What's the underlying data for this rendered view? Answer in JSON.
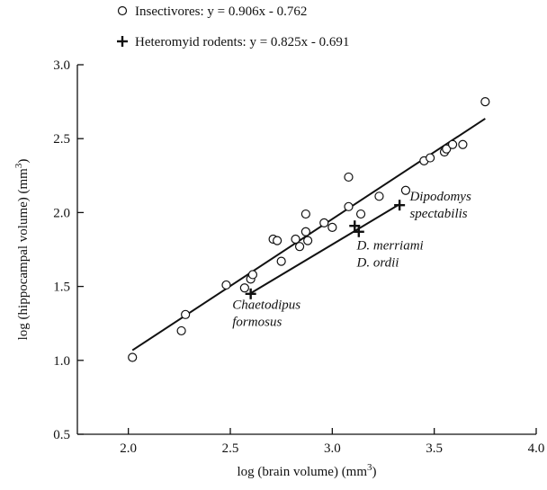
{
  "chart_data": {
    "type": "scatter",
    "title": "",
    "xlabel": "log (brain volume) (mm",
    "xlabel_sup": "3",
    "xlabel_close": ")",
    "ylabel": "log (hippocampal volume) (mm",
    "ylabel_sup": "3",
    "ylabel_close": ")",
    "xlim": [
      1.75,
      4.0
    ],
    "ylim": [
      0.5,
      3.0
    ],
    "xticks": [
      2.0,
      2.5,
      3.0,
      3.5,
      4.0
    ],
    "xtick_labels": [
      "2.0",
      "2.5",
      "3.0",
      "3.5",
      "4.0"
    ],
    "yticks": [
      0.5,
      1.0,
      1.5,
      2.0,
      2.5,
      3.0
    ],
    "ytick_labels": [
      "0.5",
      "1.0",
      "1.5",
      "2.0",
      "2.5",
      "3.0"
    ],
    "grid": false,
    "legend_position": "top",
    "series": [
      {
        "name": "Insectivores: y = 0.906x - 0.762",
        "marker": "circle",
        "points": [
          [
            2.02,
            1.02
          ],
          [
            2.26,
            1.2
          ],
          [
            2.28,
            1.31
          ],
          [
            2.48,
            1.51
          ],
          [
            2.57,
            1.49
          ],
          [
            2.6,
            1.55
          ],
          [
            2.61,
            1.58
          ],
          [
            2.71,
            1.82
          ],
          [
            2.73,
            1.81
          ],
          [
            2.75,
            1.67
          ],
          [
            2.82,
            1.82
          ],
          [
            2.84,
            1.77
          ],
          [
            2.87,
            1.99
          ],
          [
            2.87,
            1.87
          ],
          [
            2.88,
            1.81
          ],
          [
            2.96,
            1.93
          ],
          [
            3.0,
            1.9
          ],
          [
            3.08,
            2.04
          ],
          [
            3.08,
            2.24
          ],
          [
            3.14,
            1.99
          ],
          [
            3.23,
            2.11
          ],
          [
            3.36,
            2.15
          ],
          [
            3.45,
            2.35
          ],
          [
            3.48,
            2.37
          ],
          [
            3.55,
            2.41
          ],
          [
            3.56,
            2.43
          ],
          [
            3.59,
            2.46
          ],
          [
            3.64,
            2.46
          ],
          [
            3.75,
            2.75
          ]
        ],
        "fit": {
          "slope": 0.906,
          "intercept": -0.762,
          "x_range": [
            2.02,
            3.75
          ]
        }
      },
      {
        "name": "Heteromyid rodents: y = 0.825x - 0.691",
        "marker": "plus",
        "points": [
          [
            2.6,
            1.45
          ],
          [
            3.11,
            1.91
          ],
          [
            3.13,
            1.87
          ],
          [
            3.33,
            2.05
          ]
        ],
        "fit": {
          "slope": 0.825,
          "intercept": -0.691,
          "x_range": [
            2.6,
            3.33
          ]
        }
      }
    ],
    "annotations": [
      {
        "lines": [
          "Dipodomys",
          "spectabilis"
        ],
        "x": 3.38,
        "y": 2.08
      },
      {
        "lines": [
          "D. merriami",
          "D. ordii"
        ],
        "x": 3.12,
        "y": 1.75
      },
      {
        "lines": [
          "Chaetodipus",
          "formosus"
        ],
        "x": 2.51,
        "y": 1.35
      }
    ]
  }
}
